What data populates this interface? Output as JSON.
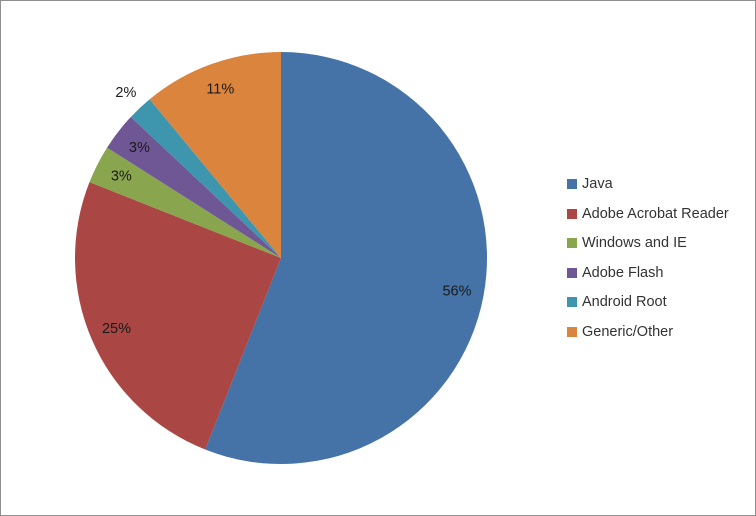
{
  "chart_data": {
    "type": "pie",
    "title": "",
    "categories": [
      "Java",
      "Adobe Acrobat Reader",
      "Windows and IE",
      "Adobe Flash",
      "Android Root",
      "Generic/Other"
    ],
    "values": [
      56,
      25,
      3,
      3,
      2,
      11
    ],
    "data_labels": [
      "56%",
      "25%",
      "3%",
      "3%",
      "2%",
      "11%"
    ],
    "colors": [
      "#4572A7",
      "#AA4643",
      "#89A54E",
      "#6F5694",
      "#3D96AE",
      "#DB843D"
    ],
    "start_angle_deg": 0,
    "direction": "clockwise",
    "legend_position": "right"
  },
  "colors": {
    "background": "#ffffff",
    "frame_border": "#8f8f8f",
    "data_label_text": "#1a1a1a",
    "legend_text": "#333333"
  }
}
